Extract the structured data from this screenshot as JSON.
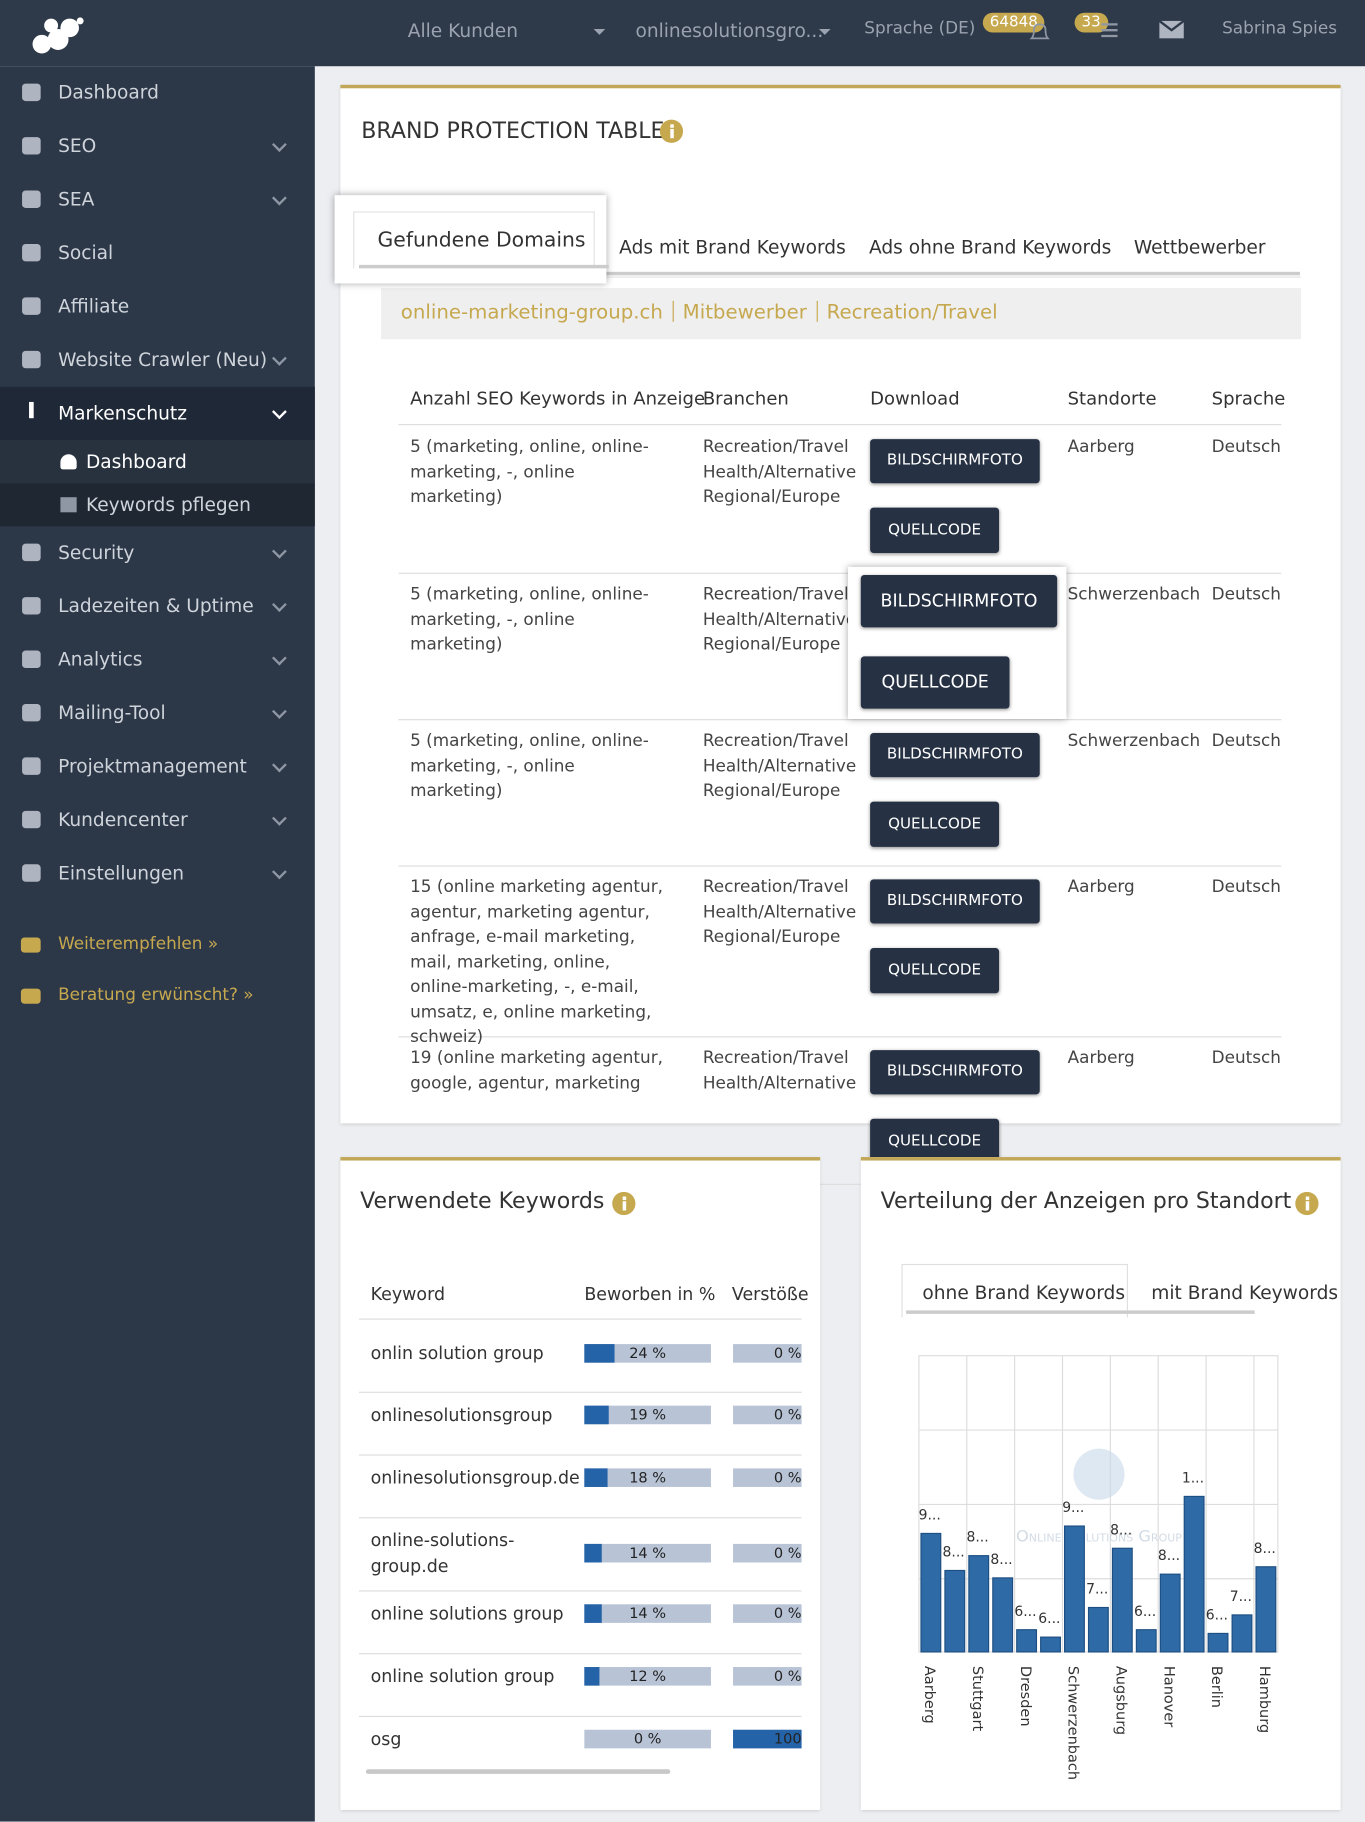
{
  "topbar": {
    "customer": "Alle Kunden",
    "project": "onlinesolutionsgro...",
    "language": "Sprache (DE)",
    "notifications": 64848,
    "tasks": 33,
    "user": "Sabrina Spies"
  },
  "sidebar": {
    "items": [
      {
        "label": "Dashboard",
        "expandable": false
      },
      {
        "label": "SEO",
        "expandable": true
      },
      {
        "label": "SEA",
        "expandable": true
      },
      {
        "label": "Social",
        "expandable": false
      },
      {
        "label": "Affiliate",
        "expandable": false
      },
      {
        "label": "Website Crawler (Neu)",
        "expandable": true
      },
      {
        "label": "Markenschutz",
        "expandable": true,
        "active": true
      }
    ],
    "submenu": [
      "Dashboard",
      "Keywords pflegen"
    ],
    "items_after": [
      {
        "label": "Security",
        "expandable": true
      },
      {
        "label": "Ladezeiten & Uptime",
        "expandable": true
      },
      {
        "label": "Analytics",
        "expandable": true
      },
      {
        "label": "Mailing-Tool",
        "expandable": true
      },
      {
        "label": "Projektmanagement",
        "expandable": true
      },
      {
        "label": "Kundencenter",
        "expandable": true
      },
      {
        "label": "Einstellungen",
        "expandable": true
      }
    ],
    "links": [
      "Weiterempfehlen »",
      "Beratung erwünscht? »"
    ]
  },
  "brand_table": {
    "title": "BRAND PROTECTION TABLE",
    "tabs": [
      "Gefundene Domains",
      "Ads mit Brand Keywords",
      "Ads ohne Brand Keywords",
      "Wettbewerber"
    ],
    "filter": [
      "online-marketing-group.ch",
      "Mitbewerber",
      "Recreation/Travel"
    ],
    "columns": [
      "Anzahl SEO Keywords in Anzeige",
      "Branchen",
      "Download",
      "Standorte",
      "Sprache"
    ],
    "buttons": [
      "BILDSCHIRMFOTO",
      "QUELLCODE"
    ],
    "rows": [
      {
        "keywords": "5 (marketing, online, online-marketing, -, online marketing)",
        "branchen": [
          "Recreation/Travel",
          "Health/Alternative",
          "Regional/Europe"
        ],
        "standort": "Aarberg",
        "sprache": "Deutsch"
      },
      {
        "keywords": "5 (marketing, online, online-marketing, -, online marketing)",
        "branchen": [
          "Recreation/Travel",
          "Health/Alternative",
          "Regional/Europe"
        ],
        "standort": "Schwerzenbach",
        "sprache": "Deutsch"
      },
      {
        "keywords": "5 (marketing, online, online-marketing, -, online marketing)",
        "branchen": [
          "Recreation/Travel",
          "Health/Alternative",
          "Regional/Europe"
        ],
        "standort": "Schwerzenbach",
        "sprache": "Deutsch"
      },
      {
        "keywords": "15 (online marketing agentur, agentur, marketing agentur, anfrage, e-mail marketing, mail, marketing, online, online-marketing, -, e-mail, umsatz, e, online marketing, schweiz)",
        "branchen": [
          "Recreation/Travel",
          "Health/Alternative",
          "Regional/Europe"
        ],
        "standort": "Aarberg",
        "sprache": "Deutsch"
      },
      {
        "keywords": "19 (online marketing agentur, google, agentur, marketing",
        "branchen": [
          "Recreation/Travel",
          "Health/Alternative"
        ],
        "standort": "Aarberg",
        "sprache": "Deutsch"
      }
    ]
  },
  "keywords": {
    "title": "Verwendete Keywords",
    "columns": [
      "Keyword",
      "Beworben in %",
      "Verstöße"
    ],
    "rows": [
      {
        "keyword": "onlin solution group",
        "beworben": 24,
        "beworben_label": "24 %",
        "verstoesse": 0,
        "verstoesse_label": "0 %"
      },
      {
        "keyword": "onlinesolutionsgroup",
        "beworben": 19,
        "beworben_label": "19 %",
        "verstoesse": 0,
        "verstoesse_label": "0 %"
      },
      {
        "keyword": "onlinesolutionsgroup.de",
        "beworben": 18,
        "beworben_label": "18 %",
        "verstoesse": 0,
        "verstoesse_label": "0 %"
      },
      {
        "keyword": "online-solutions-group.de",
        "beworben": 14,
        "beworben_label": "14 %",
        "verstoesse": 0,
        "verstoesse_label": "0 %"
      },
      {
        "keyword": "online solutions group",
        "beworben": 14,
        "beworben_label": "14 %",
        "verstoesse": 0,
        "verstoesse_label": "0 %"
      },
      {
        "keyword": "online solution group",
        "beworben": 12,
        "beworben_label": "12 %",
        "verstoesse": 0,
        "verstoesse_label": "0 %"
      },
      {
        "keyword": "osg",
        "beworben": 0,
        "beworben_label": "0 %",
        "verstoesse": 100,
        "verstoesse_label": "100"
      }
    ]
  },
  "distribution": {
    "title": "Verteilung der Anzeigen pro Standort",
    "tabs": [
      "ohne Brand Keywords",
      "mit Brand Keywords"
    ],
    "watermark": "Online Solutions Group",
    "chart": {
      "type": "bar",
      "color": "#2e6aa6",
      "categories": [
        "Aarberg",
        null,
        "Stuttgart",
        null,
        "Dresden",
        null,
        "Schwerzenbach",
        null,
        "Augsburg",
        null,
        "Hanover",
        null,
        "Berlin",
        null,
        "Hamburg"
      ],
      "values": [
        92,
        82,
        86,
        80,
        66,
        64,
        94,
        72,
        88,
        66,
        81,
        102,
        65,
        70,
        83
      ],
      "value_labels": [
        "9...",
        "8...",
        "8...",
        "8...",
        "6...",
        "6...",
        "9...",
        "7...",
        "8...",
        "6...",
        "8...",
        "1...",
        "6...",
        "7...",
        "8..."
      ],
      "ylim": [
        60,
        140
      ]
    }
  }
}
